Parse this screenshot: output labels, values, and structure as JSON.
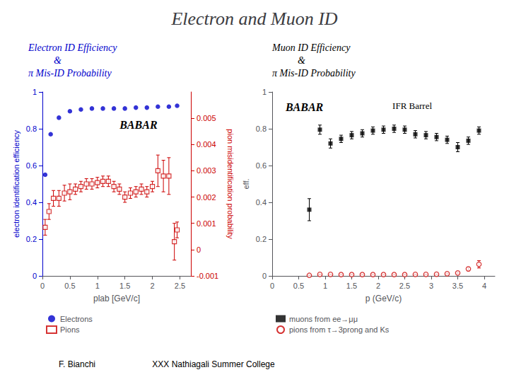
{
  "title": "Electron and Muon ID",
  "annotations": [
    "F. Bianchi",
    "XXX Nathiagali Summer College"
  ],
  "chart_data": [
    {
      "type": "scatter",
      "subtitle": [
        "Electron ID Efficiency",
        "&",
        "π Mis-ID Probability"
      ],
      "xlabel": "plab [GeV/c]",
      "ylabel": "electron identification efficiency",
      "y2label": "pion misidentification probability",
      "xlim": [
        0,
        2.7
      ],
      "xticks": [
        0,
        0.5,
        1,
        1.5,
        2,
        2.5
      ],
      "ylim": [
        0,
        1
      ],
      "yticks": [
        0,
        0.2,
        0.4,
        0.6,
        0.8,
        1
      ],
      "y2lim": [
        -0.001,
        0.006
      ],
      "y2ticks": [
        -0.001,
        0,
        0.001,
        0.002,
        0.003,
        0.004,
        0.005
      ],
      "grid": false,
      "legend": "bottom",
      "annotations": [
        "BABAR"
      ],
      "series": [
        {
          "name": "Electrons",
          "color": "#0000cc",
          "marker": "circle",
          "x": [
            0.05,
            0.15,
            0.3,
            0.5,
            0.7,
            0.9,
            1.1,
            1.3,
            1.5,
            1.7,
            1.9,
            2.1,
            2.3,
            2.45
          ],
          "values": [
            0.55,
            0.77,
            0.86,
            0.895,
            0.905,
            0.91,
            0.91,
            0.91,
            0.91,
            0.915,
            0.915,
            0.92,
            0.92,
            0.925
          ]
        },
        {
          "name": "Pions",
          "color": "#cc0000",
          "marker": "square_open",
          "axis": "y2",
          "x": [
            0.05,
            0.12,
            0.2,
            0.3,
            0.4,
            0.5,
            0.6,
            0.7,
            0.8,
            0.9,
            1.0,
            1.1,
            1.2,
            1.3,
            1.4,
            1.5,
            1.6,
            1.7,
            1.8,
            1.9,
            2.0,
            2.1,
            2.2,
            2.3,
            2.4,
            2.45
          ],
          "values": [
            0.00085,
            0.00145,
            0.00195,
            0.00195,
            0.00215,
            0.0022,
            0.0023,
            0.0024,
            0.0025,
            0.0025,
            0.00255,
            0.0026,
            0.0026,
            0.0024,
            0.0023,
            0.002,
            0.00215,
            0.0022,
            0.0023,
            0.0022,
            0.0024,
            0.003,
            0.0028,
            0.0028,
            0.0003,
            0.00075
          ],
          "errors": [
            0.0003,
            0.0003,
            0.0003,
            0.0003,
            0.0003,
            0.0003,
            0.0002,
            0.0002,
            0.0002,
            0.0002,
            0.0002,
            0.0002,
            0.0002,
            0.0002,
            0.0002,
            0.0002,
            0.0002,
            0.0002,
            0.0002,
            0.0002,
            0.0002,
            0.0006,
            0.0006,
            0.0007,
            0.0007,
            0.0003
          ]
        }
      ]
    },
    {
      "type": "scatter",
      "subtitle": [
        "Muon ID Efficiency",
        "&",
        "π Mis-ID Probability"
      ],
      "xlabel": "p (GeV/c)",
      "ylabel": "eff.",
      "xlim": [
        0,
        4.2
      ],
      "xticks": [
        0,
        0.5,
        1,
        1.5,
        2,
        2.5,
        3,
        3.5,
        4
      ],
      "ylim": [
        0,
        1
      ],
      "yticks": [
        0,
        0.2,
        0.4,
        0.6,
        0.8,
        1
      ],
      "grid": false,
      "legend": "bottom",
      "annotations": [
        "BABAR",
        "IFR Barrel"
      ],
      "series": [
        {
          "name": "muons from ee→μμ",
          "color": "#000000",
          "marker": "square",
          "x": [
            0.7,
            0.9,
            1.1,
            1.3,
            1.5,
            1.7,
            1.9,
            2.1,
            2.3,
            2.5,
            2.7,
            2.9,
            3.1,
            3.3,
            3.5,
            3.7,
            3.9
          ],
          "values": [
            0.36,
            0.795,
            0.72,
            0.745,
            0.765,
            0.775,
            0.79,
            0.795,
            0.8,
            0.795,
            0.77,
            0.765,
            0.755,
            0.74,
            0.7,
            0.735,
            0.79
          ],
          "errors": [
            0.06,
            0.025,
            0.025,
            0.02,
            0.02,
            0.02,
            0.02,
            0.02,
            0.02,
            0.02,
            0.02,
            0.02,
            0.02,
            0.02,
            0.025,
            0.02,
            0.02
          ]
        },
        {
          "name": "pions from τ→3prong and Ks",
          "color": "#cc0000",
          "marker": "circle_open",
          "x": [
            0.7,
            0.9,
            1.1,
            1.3,
            1.5,
            1.7,
            1.9,
            2.1,
            2.3,
            2.5,
            2.7,
            2.9,
            3.1,
            3.3,
            3.5,
            3.7,
            3.9
          ],
          "values": [
            0.003,
            0.008,
            0.008,
            0.007,
            0.007,
            0.007,
            0.007,
            0.007,
            0.007,
            0.007,
            0.008,
            0.008,
            0.009,
            0.012,
            0.016,
            0.038,
            0.063
          ],
          "errors": [
            0.002,
            0.002,
            0.002,
            0.002,
            0.002,
            0.002,
            0.002,
            0.002,
            0.002,
            0.002,
            0.002,
            0.002,
            0.002,
            0.003,
            0.004,
            0.01,
            0.02
          ]
        }
      ]
    }
  ]
}
